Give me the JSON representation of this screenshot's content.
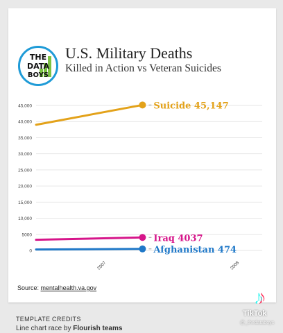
{
  "header": {
    "logo_lines": [
      "THE",
      "DATA",
      "BOYS"
    ],
    "title": "U.S. Military Deaths",
    "subtitle": "Killed in Action vs Veteran Suicides"
  },
  "chart_data": {
    "type": "line",
    "title": "U.S. Military Deaths",
    "subtitle": "Killed in Action vs Veteran Suicides",
    "xlabel": "",
    "ylabel": "",
    "x_ticks": [
      "2007",
      "2008"
    ],
    "y_ticks": [
      "0",
      "5000",
      "10,000",
      "15,000",
      "20,000",
      "25,000",
      "30,000",
      "35,000",
      "40,000",
      "45,000"
    ],
    "ylim": [
      0,
      45000
    ],
    "grid": true,
    "series": [
      {
        "name": "Suicide",
        "end_label": "Suicide 45,147",
        "color": "#e3a21a",
        "x": [
          2006.5,
          2007.3
        ],
        "y": [
          39000,
          45147
        ]
      },
      {
        "name": "Iraq",
        "end_label": "Iraq 4037",
        "color": "#d6158a",
        "x": [
          2006.5,
          2007.3
        ],
        "y": [
          3300,
          4037
        ]
      },
      {
        "name": "Afghanistan",
        "end_label": "Afghanistan 474",
        "color": "#1f78c8",
        "x": [
          2006.5,
          2007.3
        ],
        "y": [
          300,
          474
        ]
      }
    ]
  },
  "footer": {
    "source_label": "Source:",
    "source_link": "mentalhealth.va.gov",
    "credits_heading": "TEMPLATE CREDITS",
    "credits_line_prefix": "Line chart race by",
    "credits_line_bold": "Flourish teams"
  },
  "overlay": {
    "tiktok_wordmark": "TikTok",
    "tiktok_handle": "@_thedataboys"
  },
  "icons": {
    "logo": "bar-chart-logo-icon",
    "tiktok": "music-note-icon"
  }
}
